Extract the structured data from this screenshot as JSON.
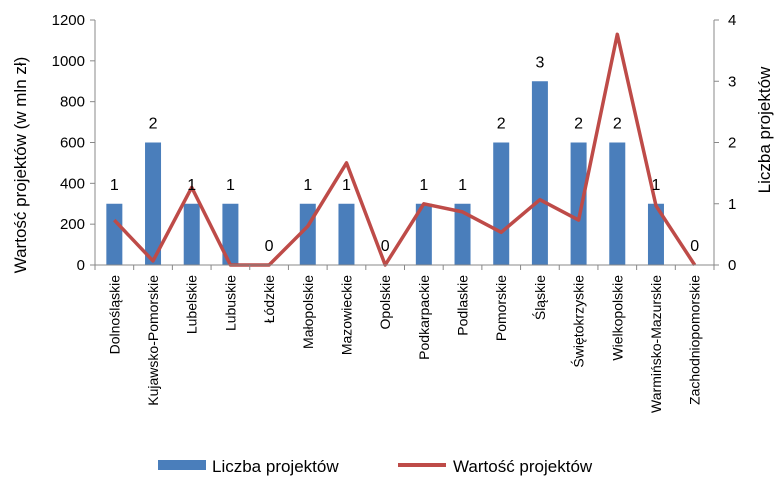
{
  "chart_data": {
    "type": "bar+line",
    "categories": [
      "Dolnośląskie",
      "Kujawsko-Pomorskie",
      "Lubelskie",
      "Lubuskie",
      "Łódzkie",
      "Małopolskie",
      "Mazowieckie",
      "Opolskie",
      "Podkarpackie",
      "Podlaskie",
      "Pomorskie",
      "Śląskie",
      "Świętokrzyskie",
      "Wielkopolskie",
      "Warmińsko-Mazurskie",
      "Zachodniopomorskie"
    ],
    "series": [
      {
        "name": "Liczba projektów",
        "type": "bar",
        "axis": "right",
        "color": "#4a7ebb",
        "values": [
          1,
          2,
          1,
          1,
          0,
          1,
          1,
          0,
          1,
          1,
          2,
          3,
          2,
          2,
          1,
          0
        ],
        "labels": [
          "1",
          "2",
          "1",
          "1",
          "0",
          "1",
          "1",
          "0",
          "1",
          "1",
          "2",
          "3",
          "2",
          "2",
          "1",
          "0"
        ]
      },
      {
        "name": "Wartość projektów",
        "type": "line",
        "axis": "left",
        "color": "#be4b48",
        "values": [
          220,
          20,
          380,
          0,
          0,
          190,
          500,
          0,
          300,
          260,
          160,
          320,
          220,
          1130,
          290,
          0
        ]
      }
    ],
    "ylabel": "Wartość projektów  (w mln zł)",
    "y2label": "Liczba projektów",
    "ylim": [
      0,
      1200
    ],
    "y2lim": [
      0,
      4
    ],
    "yticks": [
      "0",
      "200",
      "400",
      "600",
      "800",
      "1000",
      "1200"
    ],
    "y2ticks": [
      "0",
      "1",
      "2",
      "3",
      "4"
    ],
    "legend_position": "bottom",
    "grid": false
  }
}
